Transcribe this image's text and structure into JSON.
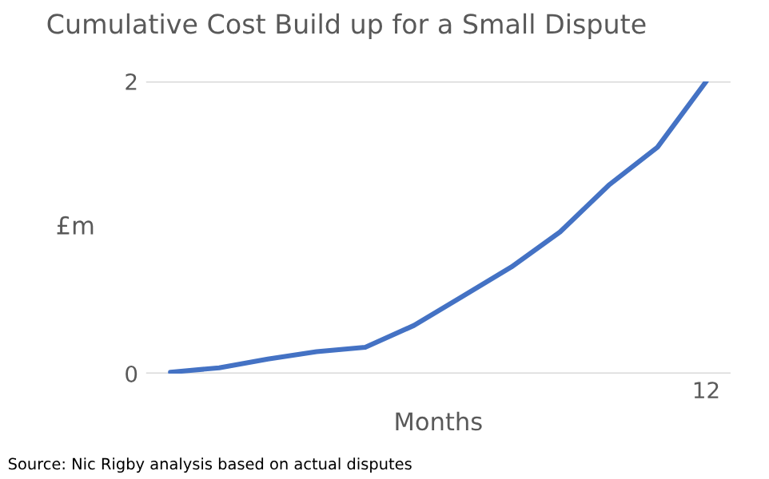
{
  "chart_data": {
    "type": "line",
    "title": "Cumulative Cost Build up for a Small Dispute",
    "xlabel": "Months",
    "ylabel": "£m",
    "categories": [
      null,
      null,
      null,
      null,
      null,
      null,
      null,
      null,
      null,
      null,
      null,
      "12"
    ],
    "series": [
      {
        "color": "#4472c4",
        "values": [
          0.01,
          0.04,
          0.1,
          0.15,
          0.18,
          0.33,
          0.53,
          0.73,
          0.97,
          1.29,
          1.55,
          2.0
        ]
      }
    ],
    "ylim": [
      0,
      2
    ],
    "yticks": [
      0,
      2
    ],
    "grid": "y",
    "legend": false,
    "marker": "none",
    "line_style": "solid",
    "annotations": [
      "Source: Nic Rigby analysis based on actual disputes"
    ]
  }
}
